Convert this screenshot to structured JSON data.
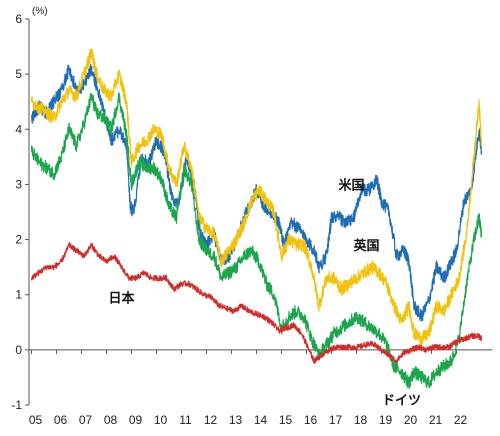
{
  "chart_data": {
    "type": "line",
    "title": "",
    "ylabel": "(%)",
    "xlabel": "",
    "xlim": [
      2005,
      2023.2
    ],
    "ylim": [
      -1,
      6
    ],
    "y_ticks": [
      -1,
      0,
      1,
      2,
      3,
      4,
      5,
      6
    ],
    "x_ticks": [
      {
        "label": "05",
        "at": 2005
      },
      {
        "label": "06",
        "at": 2006
      },
      {
        "label": "07",
        "at": 2007
      },
      {
        "label": "08",
        "at": 2008
      },
      {
        "label": "09",
        "at": 2009
      },
      {
        "label": "10",
        "at": 2010
      },
      {
        "label": "11",
        "at": 2011
      },
      {
        "label": "12",
        "at": 2012
      },
      {
        "label": "13",
        "at": 2013
      },
      {
        "label": "14",
        "at": 2014
      },
      {
        "label": "15",
        "at": 2015
      },
      {
        "label": "16",
        "at": 2016
      },
      {
        "label": "17",
        "at": 2017
      },
      {
        "label": "18",
        "at": 2018
      },
      {
        "label": "19",
        "at": 2019
      },
      {
        "label": "20",
        "at": 2020
      },
      {
        "label": "21",
        "at": 2021
      },
      {
        "label": "22",
        "at": 2022
      }
    ],
    "grid": false,
    "zero_line": true,
    "series": [
      {
        "name": "米国",
        "color": "#1f6db5",
        "label_at": [
          2017.8,
          3.0
        ],
        "x": [
          2005.0,
          2005.3,
          2005.6,
          2005.9,
          2006.2,
          2006.5,
          2006.8,
          2007.1,
          2007.4,
          2007.6,
          2007.9,
          2008.2,
          2008.5,
          2008.8,
          2008.95,
          2009.1,
          2009.4,
          2009.7,
          2010.0,
          2010.3,
          2010.6,
          2010.9,
          2011.2,
          2011.5,
          2011.75,
          2012.0,
          2012.3,
          2012.6,
          2012.9,
          2013.2,
          2013.5,
          2013.8,
          2014.0,
          2014.3,
          2014.6,
          2014.9,
          2015.1,
          2015.4,
          2015.7,
          2016.0,
          2016.3,
          2016.5,
          2016.8,
          2017.0,
          2017.3,
          2017.6,
          2017.9,
          2018.2,
          2018.5,
          2018.8,
          2019.0,
          2019.3,
          2019.6,
          2019.9,
          2020.1,
          2020.3,
          2020.6,
          2020.9,
          2021.2,
          2021.5,
          2021.8,
          2022.0,
          2022.3,
          2022.6,
          2022.9,
          2023.0
        ],
        "values": [
          4.2,
          4.4,
          4.3,
          4.5,
          4.7,
          5.1,
          4.7,
          4.8,
          5.1,
          4.8,
          4.3,
          3.8,
          4.0,
          3.7,
          2.6,
          2.5,
          3.5,
          3.4,
          3.8,
          3.6,
          2.8,
          2.6,
          3.5,
          3.0,
          2.1,
          1.9,
          2.1,
          1.6,
          1.7,
          2.0,
          2.4,
          2.7,
          2.9,
          2.6,
          2.5,
          2.3,
          1.9,
          2.3,
          2.2,
          2.0,
          1.8,
          1.5,
          1.7,
          2.4,
          2.4,
          2.3,
          2.4,
          2.9,
          2.9,
          3.1,
          2.7,
          2.5,
          1.7,
          1.8,
          1.6,
          0.8,
          0.6,
          0.9,
          1.5,
          1.3,
          1.6,
          1.8,
          2.7,
          2.9,
          4.0,
          3.6
        ]
      },
      {
        "name": "英国",
        "color": "#f2c10a",
        "label_at": [
          2018.4,
          1.9
        ],
        "x": [
          2005.0,
          2005.3,
          2005.6,
          2005.9,
          2006.2,
          2006.5,
          2006.8,
          2007.1,
          2007.4,
          2007.6,
          2007.9,
          2008.2,
          2008.5,
          2008.8,
          2009.0,
          2009.3,
          2009.6,
          2009.9,
          2010.2,
          2010.5,
          2010.8,
          2011.1,
          2011.4,
          2011.7,
          2012.0,
          2012.3,
          2012.6,
          2012.9,
          2013.2,
          2013.5,
          2013.8,
          2014.1,
          2014.4,
          2014.7,
          2015.0,
          2015.3,
          2015.6,
          2015.9,
          2016.2,
          2016.5,
          2016.8,
          2017.1,
          2017.4,
          2017.7,
          2018.0,
          2018.3,
          2018.6,
          2018.9,
          2019.2,
          2019.5,
          2019.8,
          2020.1,
          2020.3,
          2020.6,
          2020.9,
          2021.2,
          2021.5,
          2021.8,
          2022.1,
          2022.4,
          2022.7,
          2022.9,
          2023.0
        ],
        "values": [
          4.5,
          4.4,
          4.3,
          4.2,
          4.5,
          4.7,
          4.6,
          5.0,
          5.4,
          5.0,
          4.7,
          4.6,
          5.0,
          4.5,
          3.4,
          3.7,
          3.8,
          4.0,
          3.9,
          3.3,
          3.0,
          3.7,
          3.3,
          2.4,
          2.2,
          2.1,
          1.6,
          1.8,
          2.0,
          2.3,
          2.7,
          2.9,
          2.7,
          2.5,
          1.7,
          2.0,
          1.9,
          1.9,
          1.5,
          0.8,
          1.3,
          1.3,
          1.1,
          1.2,
          1.3,
          1.4,
          1.5,
          1.4,
          1.2,
          0.8,
          0.5,
          0.8,
          0.3,
          0.2,
          0.3,
          0.8,
          0.7,
          1.0,
          1.3,
          2.1,
          3.5,
          4.5,
          3.7
        ]
      },
      {
        "name": "ドイツ",
        "color": "#1aa64a",
        "label_at": [
          2019.8,
          -0.9
        ],
        "x": [
          2005.0,
          2005.3,
          2005.6,
          2005.9,
          2006.2,
          2006.5,
          2006.8,
          2007.1,
          2007.4,
          2007.6,
          2007.9,
          2008.2,
          2008.5,
          2008.8,
          2009.0,
          2009.3,
          2009.6,
          2009.9,
          2010.2,
          2010.5,
          2010.8,
          2011.1,
          2011.4,
          2011.7,
          2012.0,
          2012.3,
          2012.6,
          2012.9,
          2013.2,
          2013.5,
          2013.8,
          2014.1,
          2014.4,
          2014.7,
          2015.0,
          2015.3,
          2015.6,
          2015.9,
          2016.2,
          2016.5,
          2016.8,
          2017.1,
          2017.4,
          2017.7,
          2018.0,
          2018.3,
          2018.6,
          2018.9,
          2019.2,
          2019.5,
          2019.8,
          2020.1,
          2020.3,
          2020.6,
          2020.9,
          2021.2,
          2021.5,
          2021.8,
          2022.1,
          2022.4,
          2022.7,
          2022.9,
          2023.0
        ],
        "values": [
          3.6,
          3.4,
          3.3,
          3.2,
          3.5,
          4.0,
          3.7,
          4.1,
          4.6,
          4.3,
          4.2,
          4.0,
          4.6,
          3.9,
          3.0,
          3.4,
          3.3,
          3.3,
          3.1,
          2.6,
          2.4,
          3.3,
          3.0,
          2.0,
          1.8,
          1.7,
          1.3,
          1.4,
          1.5,
          1.7,
          1.8,
          1.6,
          1.2,
          1.0,
          0.4,
          0.6,
          0.7,
          0.6,
          0.2,
          -0.1,
          0.1,
          0.3,
          0.4,
          0.5,
          0.6,
          0.5,
          0.4,
          0.3,
          0.1,
          -0.3,
          -0.4,
          -0.6,
          -0.4,
          -0.5,
          -0.6,
          -0.4,
          -0.3,
          -0.2,
          0.2,
          1.2,
          2.0,
          2.4,
          2.1
        ]
      },
      {
        "name": "日本",
        "color": "#d42a2a",
        "label_at": [
          2008.6,
          0.95
        ],
        "x": [
          2005.0,
          2005.3,
          2005.6,
          2005.9,
          2006.2,
          2006.5,
          2006.8,
          2007.1,
          2007.4,
          2007.7,
          2008.0,
          2008.3,
          2008.6,
          2008.9,
          2009.2,
          2009.5,
          2009.8,
          2010.1,
          2010.4,
          2010.7,
          2011.0,
          2011.3,
          2011.6,
          2011.9,
          2012.2,
          2012.5,
          2012.8,
          2013.1,
          2013.4,
          2013.7,
          2014.0,
          2014.3,
          2014.6,
          2014.9,
          2015.2,
          2015.5,
          2015.8,
          2016.1,
          2016.3,
          2016.6,
          2016.9,
          2017.2,
          2017.5,
          2017.8,
          2018.1,
          2018.4,
          2018.7,
          2019.0,
          2019.3,
          2019.6,
          2019.9,
          2020.2,
          2020.5,
          2020.8,
          2021.1,
          2021.4,
          2021.7,
          2022.0,
          2022.3,
          2022.6,
          2022.9,
          2023.0
        ],
        "values": [
          1.3,
          1.4,
          1.5,
          1.5,
          1.6,
          1.9,
          1.8,
          1.7,
          1.9,
          1.7,
          1.6,
          1.7,
          1.5,
          1.3,
          1.3,
          1.4,
          1.3,
          1.3,
          1.3,
          1.1,
          1.2,
          1.2,
          1.1,
          1.0,
          0.95,
          0.8,
          0.75,
          0.7,
          0.8,
          0.7,
          0.65,
          0.6,
          0.5,
          0.35,
          0.4,
          0.45,
          0.3,
          0.0,
          -0.2,
          -0.1,
          0.0,
          0.05,
          0.05,
          0.05,
          0.05,
          0.1,
          0.1,
          0.0,
          -0.1,
          -0.2,
          -0.05,
          0.0,
          0.05,
          0.0,
          0.05,
          0.05,
          0.05,
          0.15,
          0.2,
          0.25,
          0.25,
          0.2
        ]
      }
    ]
  }
}
